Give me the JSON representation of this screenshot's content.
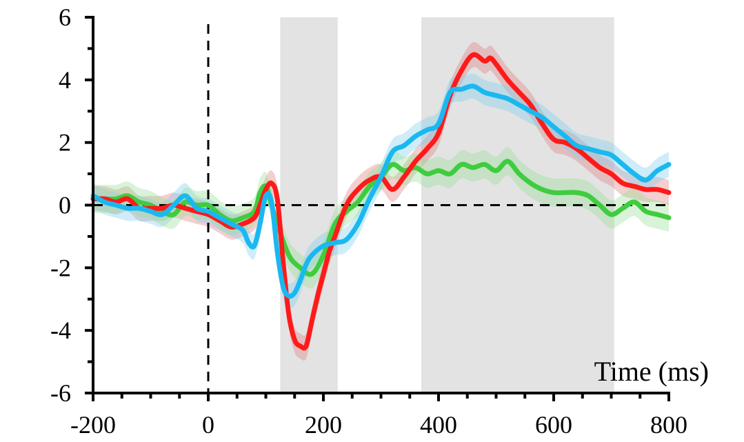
{
  "chart_data": {
    "type": "line",
    "title": "",
    "xlabel": "Time (ms)",
    "ylabel": "",
    "xlim": [
      -200,
      800
    ],
    "ylim": [
      -6,
      6
    ],
    "x_ticks": [
      -200,
      0,
      200,
      400,
      600,
      800
    ],
    "y_ticks": [
      -6,
      -4,
      -2,
      0,
      2,
      4,
      6
    ],
    "x_minor_step": 50,
    "y_minor_step": 1,
    "grid": false,
    "zero_line": true,
    "onset_line_x": 0,
    "shaded_windows": [
      [
        125,
        225
      ],
      [
        370,
        705
      ]
    ],
    "shade_color": "#e3e3e3",
    "series": [
      {
        "color": "#ff1a1a",
        "band_color": "#e08080",
        "x": [
          -200,
          -180,
          -160,
          -140,
          -120,
          -100,
          -80,
          -60,
          -40,
          -20,
          0,
          20,
          40,
          60,
          80,
          90,
          100,
          110,
          120,
          130,
          140,
          150,
          160,
          170,
          180,
          190,
          200,
          210,
          220,
          240,
          260,
          280,
          300,
          320,
          340,
          360,
          380,
          400,
          420,
          440,
          460,
          480,
          490,
          500,
          520,
          540,
          560,
          580,
          600,
          620,
          640,
          660,
          680,
          700,
          720,
          740,
          760,
          780,
          800
        ],
        "y": [
          0.2,
          0.2,
          0.1,
          0.2,
          -0.1,
          -0.1,
          -0.1,
          0.0,
          -0.1,
          -0.2,
          -0.3,
          -0.5,
          -0.7,
          -0.6,
          -0.4,
          0.0,
          0.5,
          0.7,
          0.2,
          -1.8,
          -3.5,
          -4.3,
          -4.5,
          -4.5,
          -3.7,
          -2.9,
          -2.2,
          -1.5,
          -1.0,
          0.0,
          0.5,
          0.8,
          0.9,
          0.5,
          0.9,
          1.4,
          1.8,
          2.3,
          3.5,
          4.3,
          4.8,
          4.6,
          4.7,
          4.5,
          4.0,
          3.6,
          3.2,
          2.6,
          2.1,
          2.0,
          1.8,
          1.5,
          1.2,
          1.0,
          0.7,
          0.6,
          0.5,
          0.5,
          0.4
        ],
        "band": 0.4
      },
      {
        "color": "#1ab8f0",
        "band_color": "#7fcff0",
        "x": [
          -200,
          -180,
          -160,
          -140,
          -120,
          -100,
          -80,
          -60,
          -40,
          -20,
          0,
          20,
          40,
          60,
          70,
          80,
          90,
          100,
          110,
          120,
          130,
          140,
          150,
          160,
          170,
          180,
          200,
          220,
          240,
          260,
          280,
          300,
          320,
          340,
          360,
          380,
          400,
          420,
          440,
          460,
          480,
          500,
          520,
          540,
          560,
          580,
          600,
          620,
          640,
          660,
          680,
          700,
          720,
          740,
          760,
          780,
          800
        ],
        "y": [
          0.3,
          0.1,
          0.0,
          -0.1,
          -0.1,
          -0.2,
          -0.3,
          0.0,
          0.3,
          -0.1,
          -0.2,
          -0.4,
          -0.6,
          -0.8,
          -1.2,
          -1.3,
          -0.6,
          0.3,
          0.1,
          -1.5,
          -2.6,
          -2.9,
          -2.8,
          -2.4,
          -1.9,
          -1.6,
          -1.3,
          -1.2,
          -1.1,
          -0.6,
          0.2,
          0.9,
          1.7,
          1.9,
          2.2,
          2.4,
          2.6,
          3.6,
          3.7,
          3.8,
          3.6,
          3.5,
          3.4,
          3.2,
          3.0,
          2.8,
          2.5,
          2.2,
          1.9,
          1.8,
          1.7,
          1.6,
          1.3,
          1.0,
          0.8,
          1.1,
          1.3
        ],
        "band": 0.4
      },
      {
        "color": "#3fcc3f",
        "band_color": "#99e099",
        "x": [
          -200,
          -180,
          -160,
          -140,
          -120,
          -100,
          -80,
          -60,
          -40,
          -20,
          0,
          20,
          40,
          60,
          80,
          90,
          100,
          110,
          120,
          140,
          160,
          180,
          200,
          220,
          240,
          260,
          280,
          300,
          320,
          340,
          360,
          380,
          400,
          420,
          440,
          460,
          480,
          500,
          520,
          540,
          560,
          580,
          600,
          620,
          640,
          660,
          680,
          700,
          720,
          740,
          760,
          780,
          800
        ],
        "y": [
          0.2,
          0.2,
          0.2,
          0.3,
          0.1,
          0.0,
          -0.2,
          -0.3,
          0.1,
          0.0,
          0.0,
          -0.3,
          -0.5,
          -0.4,
          -0.2,
          0.4,
          0.6,
          0.0,
          -0.6,
          -1.6,
          -2.0,
          -2.2,
          -1.6,
          -0.6,
          -0.2,
          0.1,
          0.6,
          0.9,
          1.3,
          1.1,
          1.2,
          1.0,
          1.1,
          1.0,
          1.3,
          1.2,
          1.3,
          1.1,
          1.4,
          1.0,
          0.7,
          0.5,
          0.4,
          0.4,
          0.4,
          0.3,
          0.0,
          -0.3,
          -0.1,
          0.1,
          -0.2,
          -0.3,
          -0.4
        ],
        "band": 0.45
      }
    ]
  }
}
